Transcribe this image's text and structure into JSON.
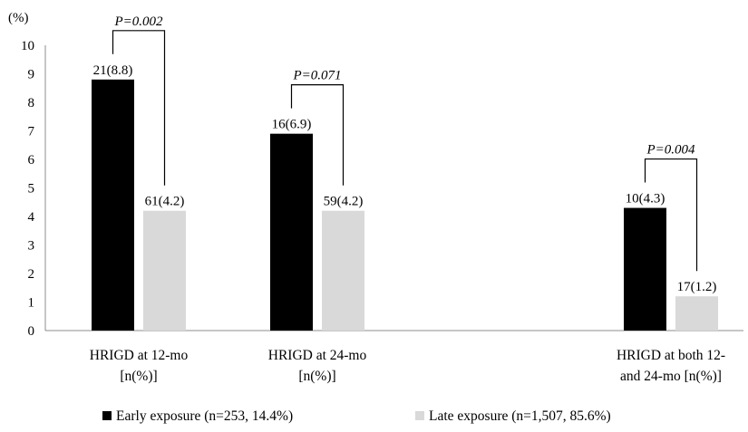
{
  "chart_data": {
    "type": "bar",
    "y_unit_label": "(%)",
    "ylim": [
      0,
      10
    ],
    "yticks": [
      "0",
      "1",
      "2",
      "3",
      "4",
      "5",
      "6",
      "7",
      "8",
      "9",
      "10"
    ],
    "grid": false,
    "legend_position": "bottom",
    "categories": [
      {
        "line1": "HRIGD at 12-mo",
        "line2": "[n(%)]"
      },
      {
        "line1": "HRIGD at 24-mo",
        "line2": "[n(%)]"
      },
      {
        "line1": "HRIGD at both 12-",
        "line2": "and 24-mo [n(%)]"
      }
    ],
    "series": [
      {
        "name": "Early exposure (n=253, 14.4%)",
        "color": "#000000",
        "values": [
          8.8,
          6.9,
          4.3
        ],
        "labels": [
          "21(8.8)",
          "16(6.9)",
          "10(4.3)"
        ]
      },
      {
        "name": "Late exposure (n=1,507, 85.6%)",
        "color": "#d9d9d9",
        "values": [
          4.2,
          4.2,
          1.2
        ],
        "labels": [
          "61(4.2)",
          "59(4.2)",
          "17(1.2)"
        ]
      }
    ],
    "p_values": [
      "P=0.002",
      "P=0.071",
      "P=0.004"
    ]
  }
}
